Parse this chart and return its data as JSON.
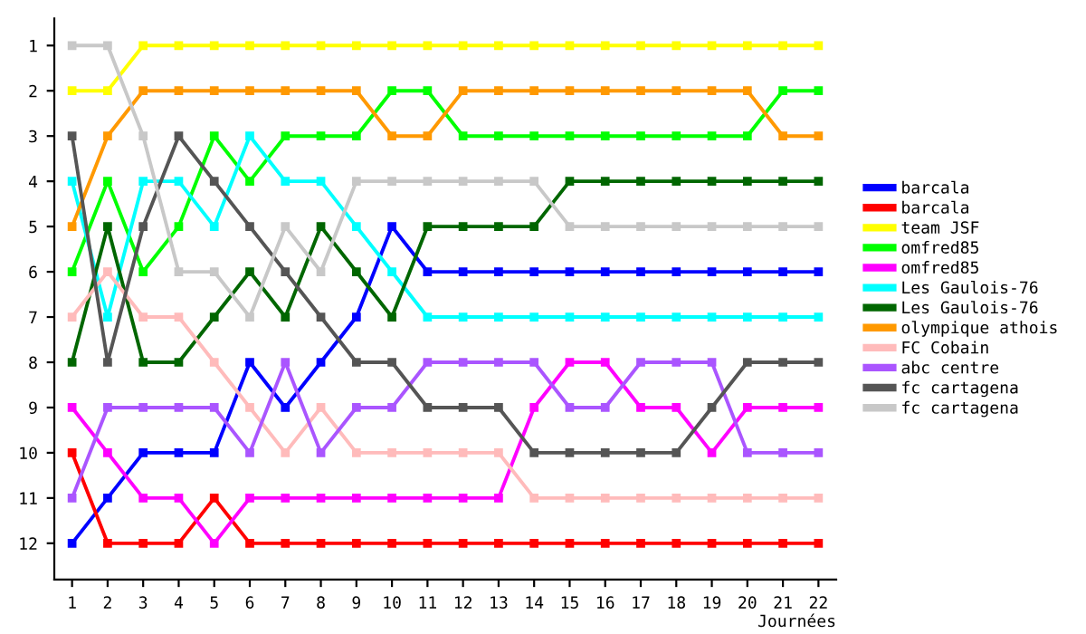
{
  "chart_data": {
    "type": "line",
    "xlabel": "Journées",
    "x": [
      1,
      2,
      3,
      4,
      5,
      6,
      7,
      8,
      9,
      10,
      11,
      12,
      13,
      14,
      15,
      16,
      17,
      18,
      19,
      20,
      21,
      22
    ],
    "xlim": [
      0.5,
      22.5
    ],
    "xticks": [
      1,
      2,
      3,
      4,
      5,
      6,
      7,
      8,
      9,
      10,
      11,
      12,
      13,
      14,
      15,
      16,
      17,
      18,
      19,
      20,
      21,
      22
    ],
    "ylim": [
      12.8,
      0.4
    ],
    "yticks": [
      1,
      2,
      3,
      4,
      5,
      6,
      7,
      8,
      9,
      10,
      11,
      12
    ],
    "marker": "square",
    "grid": false,
    "legend": "right",
    "series": [
      {
        "name": "barcala",
        "color": "#0000ff",
        "values": [
          12,
          11,
          10,
          10,
          10,
          8,
          9,
          8,
          7,
          5,
          6,
          6,
          6,
          6,
          6,
          6,
          6,
          6,
          6,
          6,
          6,
          6
        ]
      },
      {
        "name": "barcala",
        "color": "#ff0000",
        "values": [
          10,
          12,
          12,
          12,
          11,
          12,
          12,
          12,
          12,
          12,
          12,
          12,
          12,
          12,
          12,
          12,
          12,
          12,
          12,
          12,
          12,
          12
        ]
      },
      {
        "name": "team JSF",
        "color": "#ffff00",
        "values": [
          2,
          2,
          1,
          1,
          1,
          1,
          1,
          1,
          1,
          1,
          1,
          1,
          1,
          1,
          1,
          1,
          1,
          1,
          1,
          1,
          1,
          1
        ]
      },
      {
        "name": "omfred85",
        "color": "#00ff00",
        "values": [
          6,
          4,
          6,
          5,
          3,
          4,
          3,
          3,
          3,
          2,
          2,
          3,
          3,
          3,
          3,
          3,
          3,
          3,
          3,
          3,
          2,
          2
        ]
      },
      {
        "name": "omfred85",
        "color": "#ff00ff",
        "values": [
          9,
          10,
          11,
          11,
          12,
          11,
          11,
          11,
          11,
          11,
          11,
          11,
          11,
          9,
          8,
          8,
          9,
          9,
          10,
          9,
          9,
          9
        ]
      },
      {
        "name": "Les Gaulois-76",
        "color": "#00ffff",
        "values": [
          4,
          7,
          4,
          4,
          5,
          3,
          4,
          4,
          5,
          6,
          7,
          7,
          7,
          7,
          7,
          7,
          7,
          7,
          7,
          7,
          7,
          7
        ]
      },
      {
        "name": "Les Gaulois-76",
        "color": "#006600",
        "values": [
          8,
          5,
          8,
          8,
          7,
          6,
          7,
          5,
          6,
          7,
          5,
          5,
          5,
          5,
          4,
          4,
          4,
          4,
          4,
          4,
          4,
          4
        ]
      },
      {
        "name": "olympique athois",
        "color": "#ff9900",
        "values": [
          5,
          3,
          2,
          2,
          2,
          2,
          2,
          2,
          2,
          3,
          3,
          2,
          2,
          2,
          2,
          2,
          2,
          2,
          2,
          2,
          3,
          3
        ]
      },
      {
        "name": "FC Cobain",
        "color": "#ffbbbb",
        "values": [
          7,
          6,
          7,
          7,
          8,
          9,
          10,
          9,
          10,
          10,
          10,
          10,
          10,
          11,
          11,
          11,
          11,
          11,
          11,
          11,
          11,
          11
        ]
      },
      {
        "name": "abc centre",
        "color": "#aa55ff",
        "values": [
          11,
          9,
          9,
          9,
          9,
          10,
          8,
          10,
          9,
          9,
          8,
          8,
          8,
          8,
          9,
          9,
          8,
          8,
          8,
          10,
          10,
          10
        ]
      },
      {
        "name": "fc cartagena",
        "color": "#555555",
        "values": [
          3,
          8,
          5,
          3,
          4,
          5,
          6,
          7,
          8,
          8,
          9,
          9,
          9,
          10,
          10,
          10,
          10,
          10,
          9,
          8,
          8,
          8
        ]
      },
      {
        "name": "fc cartagena",
        "color": "#c8c8c8",
        "values": [
          1,
          1,
          3,
          6,
          6,
          7,
          5,
          6,
          4,
          4,
          4,
          4,
          4,
          4,
          5,
          5,
          5,
          5,
          5,
          5,
          5,
          5
        ]
      }
    ]
  }
}
